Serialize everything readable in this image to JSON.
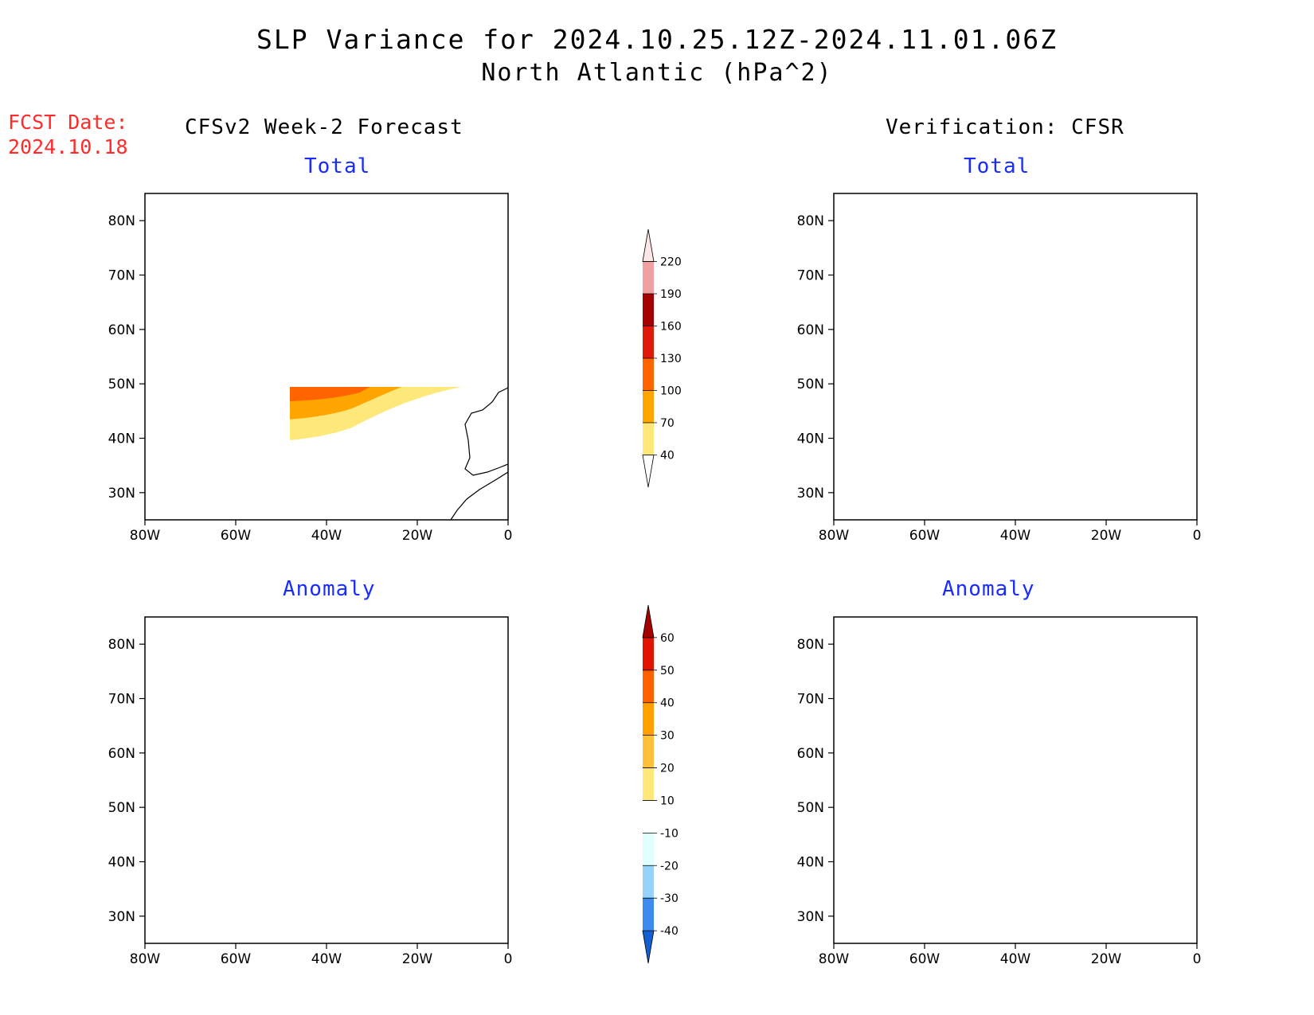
{
  "title": "SLP Variance for 2024.10.25.12Z-2024.11.01.06Z",
  "subtitle": "North Atlantic (hPa^2)",
  "fcst_label": "FCST Date:",
  "fcst_date": "2024.10.18",
  "columns": {
    "left": "CFSv2 Week-2 Forecast",
    "right": "Verification: CFSR"
  },
  "panels": {
    "forecast_total": {
      "title": "Total"
    },
    "verification_total": {
      "title": "Total"
    },
    "forecast_anomaly": {
      "title": "Anomaly"
    },
    "verification_anomaly": {
      "title": "Anomaly"
    }
  },
  "axes": {
    "lat_ticks": [
      "80N",
      "70N",
      "60N",
      "50N",
      "40N",
      "30N"
    ],
    "lon_ticks": [
      "80W",
      "60W",
      "40W",
      "20W",
      "0"
    ],
    "lat_range": [
      25,
      85
    ],
    "lon_range": [
      -80,
      0
    ]
  },
  "total_colorbar": {
    "levels": [
      "40",
      "70",
      "100",
      "130",
      "160",
      "190",
      "220"
    ],
    "colors": [
      "#ffffff",
      "#ffe87a",
      "#ffa500",
      "#ff6400",
      "#e01a0a",
      "#a50000",
      "#f0a0a0",
      "#fde6e6"
    ]
  },
  "anomaly_colorbar": {
    "levels": [
      "-40",
      "-30",
      "-20",
      "-10",
      "10",
      "20",
      "30",
      "40",
      "50",
      "60"
    ],
    "colors": [
      "#1460d2",
      "#3c8cf0",
      "#96d2fa",
      "#e1ffff",
      "#ffffff",
      "#ffe87a",
      "#ffc03c",
      "#ffa000",
      "#ff6000",
      "#e11400",
      "#a50000"
    ]
  },
  "colors": {
    "title_blue": "#1a2bff",
    "fcst_red": "#ff2a2a"
  }
}
